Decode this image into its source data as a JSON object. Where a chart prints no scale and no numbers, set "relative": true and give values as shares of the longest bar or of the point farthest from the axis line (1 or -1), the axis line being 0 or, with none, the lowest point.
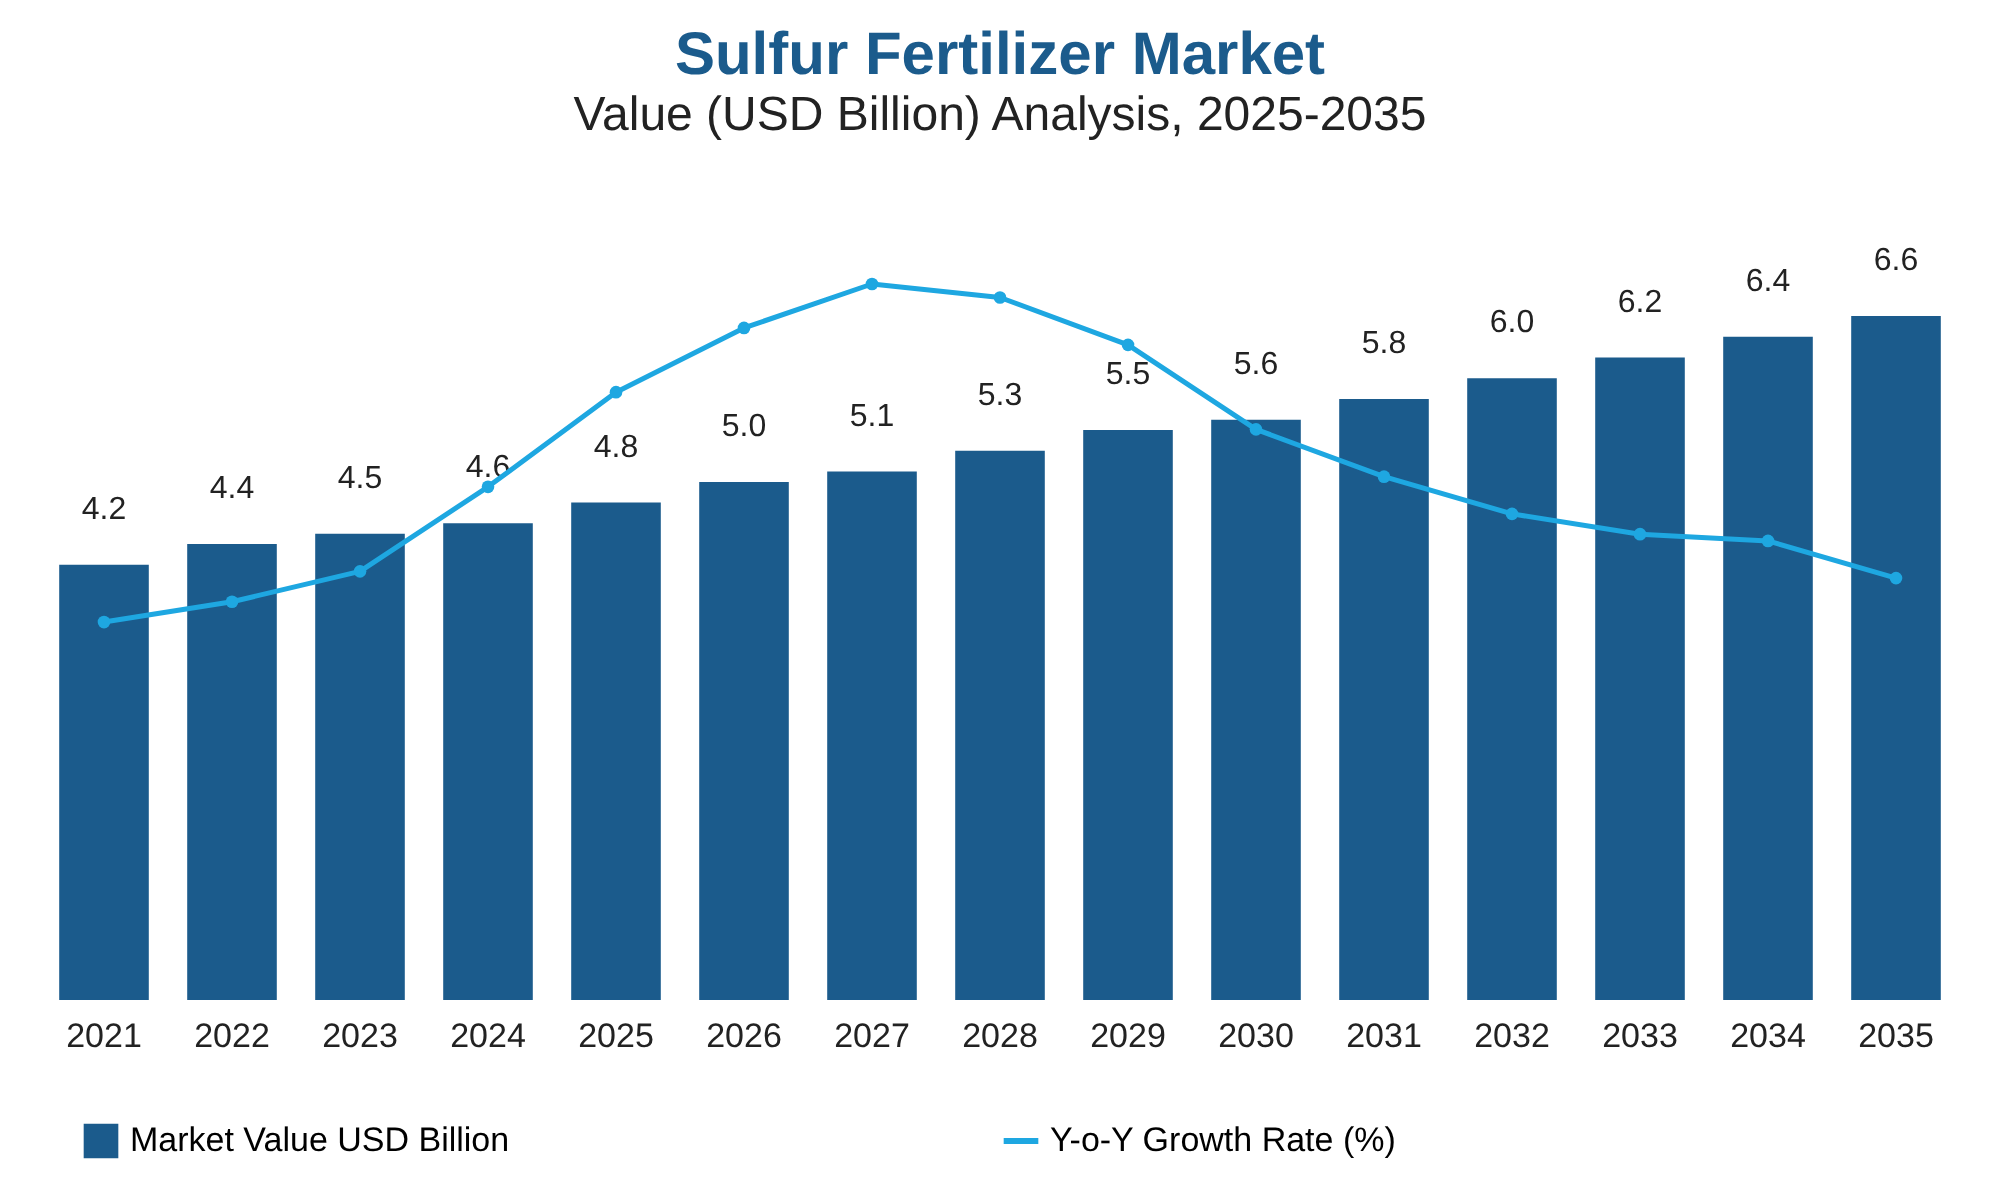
{
  "chart_data": [
    {
      "type": "bar",
      "title": "Sulfur Fertilizer Market",
      "subtitle": "Value (USD Billion) Analysis, 2025-2035",
      "categories": [
        "2021",
        "2022",
        "2023",
        "2024",
        "2025",
        "2026",
        "2027",
        "2028",
        "2029",
        "2030",
        "2031",
        "2032",
        "2033",
        "2034",
        "2035"
      ],
      "legend": "bottom",
      "tick_labels": "x",
      "series": [
        {
          "name": "Market Value USD Billion",
          "color": "#1b5b8c",
          "values": [
            4.2,
            4.4,
            4.5,
            4.6,
            4.8,
            5.0,
            5.1,
            5.3,
            5.5,
            5.6,
            5.8,
            6.0,
            6.2,
            6.4,
            6.6
          ],
          "value_labels": [
            "4.2",
            "4.4",
            "4.5",
            "4.6",
            "4.8",
            "5.0",
            "5.1",
            "5.3",
            "5.5",
            "5.6",
            "5.8",
            "6.0",
            "6.2",
            "6.4",
            "6.6"
          ]
        }
      ]
    },
    {
      "type": "line",
      "relative": true,
      "legend": "bottom",
      "tick_labels": false,
      "marker": "circle",
      "categories": [
        "2021",
        "2022",
        "2023",
        "2024",
        "2025",
        "2026",
        "2027",
        "2028",
        "2029",
        "2030",
        "2031",
        "2032",
        "2033",
        "2034",
        "2035"
      ],
      "series": [
        {
          "name": "Y-o-Y Growth Rate (%)",
          "color": "#1ea7e1",
          "values": [
            0,
            0.06,
            0.15,
            0.4,
            0.68,
            0.87,
            1,
            0.96,
            0.82,
            0.57,
            0.43,
            0.32,
            0.26,
            0.24,
            0.13
          ]
        }
      ]
    }
  ]
}
